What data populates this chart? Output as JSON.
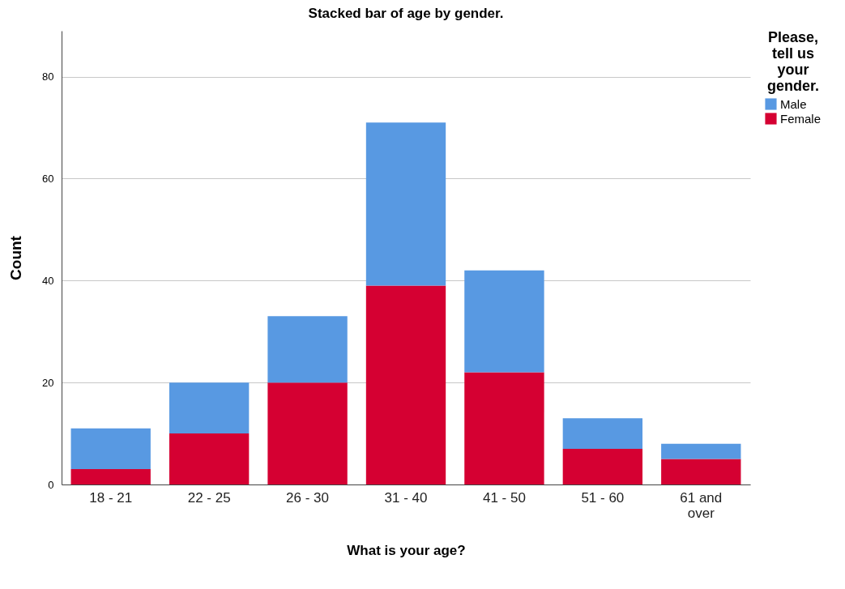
{
  "chart_data": {
    "type": "bar",
    "title": "Stacked bar of age by gender.",
    "xlabel": "What is your age?",
    "ylabel": "Count",
    "legend_title": "Please, tell us your gender.",
    "categories": [
      "18 - 21",
      "22 - 25",
      "26 - 30",
      "31 - 40",
      "41 - 50",
      "51 - 60",
      "61 and over"
    ],
    "series": [
      {
        "name": "Female",
        "color": "#d50032",
        "values": [
          3,
          10,
          20,
          39,
          22,
          7,
          5
        ]
      },
      {
        "name": "Male",
        "color": "#5899e2",
        "values": [
          8,
          10,
          13,
          32,
          20,
          6,
          3
        ]
      }
    ],
    "stacked": true,
    "ylim": [
      0,
      89
    ],
    "yticks": [
      0,
      20,
      40,
      60,
      80
    ],
    "grid": "y",
    "legend": "top right"
  }
}
